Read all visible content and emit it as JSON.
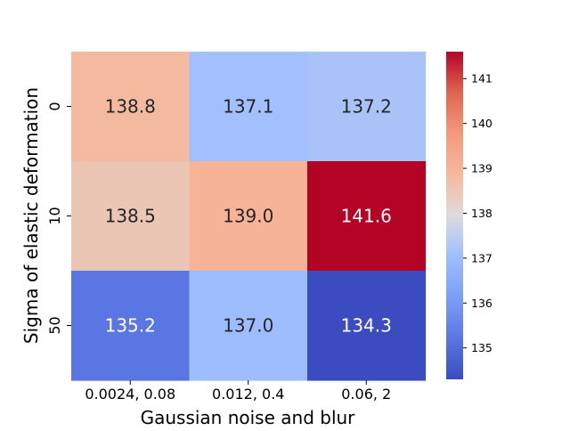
{
  "chart_data": {
    "type": "heatmap",
    "xlabel": "Gaussian noise and blur",
    "ylabel": "Sigma of elastic deformation",
    "x_categories": [
      "0.0024, 0.08",
      "0.012, 0.4",
      "0.06, 2"
    ],
    "y_categories": [
      "0",
      "10",
      "50"
    ],
    "values": [
      [
        138.8,
        137.1,
        137.2
      ],
      [
        138.5,
        139.0,
        141.6
      ],
      [
        135.2,
        137.0,
        134.3
      ]
    ],
    "value_labels": [
      [
        "138.8",
        "137.1",
        "137.2"
      ],
      [
        "138.5",
        "139.0",
        "141.6"
      ],
      [
        "135.2",
        "137.0",
        "134.3"
      ]
    ],
    "colormap": "coolwarm",
    "vmin": 134.3,
    "vmax": 141.6,
    "colorbar_ticks": [
      "135",
      "136",
      "137",
      "138",
      "139",
      "140",
      "141"
    ],
    "colorbar_tick_values": [
      135,
      136,
      137,
      138,
      139,
      140,
      141
    ]
  }
}
